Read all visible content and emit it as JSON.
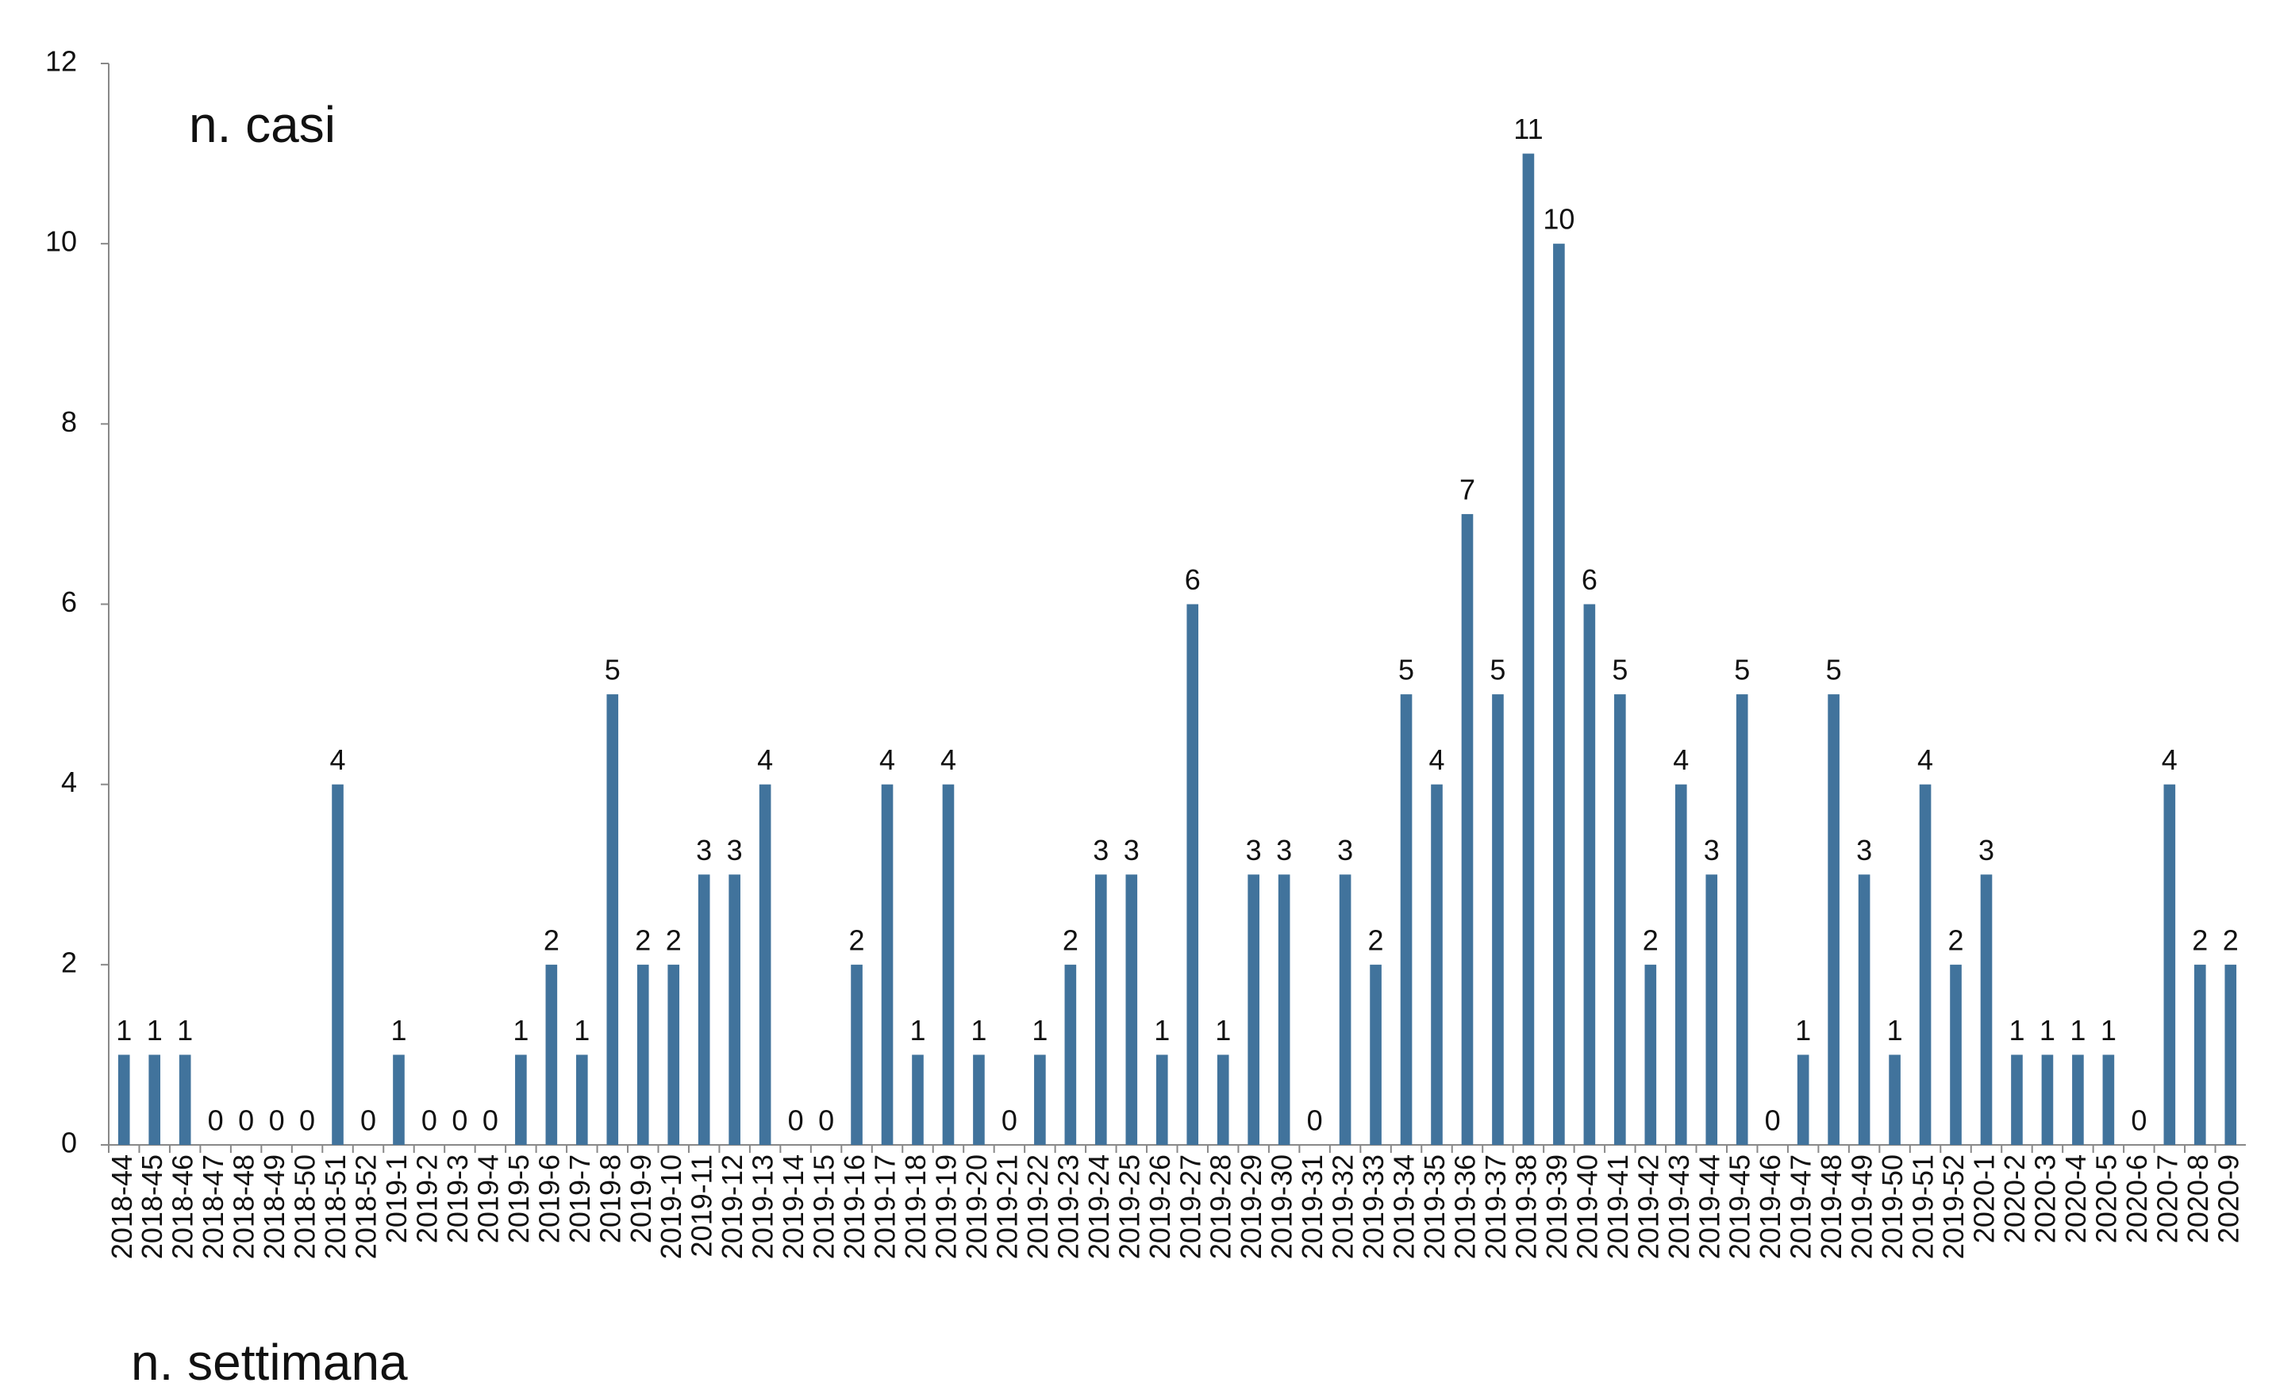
{
  "chart_data": {
    "type": "bar",
    "y_label": "n. casi",
    "x_label": "n. settimana",
    "categories": [
      "2018-44",
      "2018-45",
      "2018-46",
      "2018-47",
      "2018-48",
      "2018-49",
      "2018-50",
      "2018-51",
      "2018-52",
      "2019-1",
      "2019-2",
      "2019-3",
      "2019-4",
      "2019-5",
      "2019-6",
      "2019-7",
      "2019-8",
      "2019-9",
      "2019-10",
      "2019-11",
      "2019-12",
      "2019-13",
      "2019-14",
      "2019-15",
      "2019-16",
      "2019-17",
      "2019-18",
      "2019-19",
      "2019-20",
      "2019-21",
      "2019-22",
      "2019-23",
      "2019-24",
      "2019-25",
      "2019-26",
      "2019-27",
      "2019-28",
      "2019-29",
      "2019-30",
      "2019-31",
      "2019-32",
      "2019-33",
      "2019-34",
      "2019-35",
      "2019-36",
      "2019-37",
      "2019-38",
      "2019-39",
      "2019-40",
      "2019-41",
      "2019-42",
      "2019-43",
      "2019-44",
      "2019-45",
      "2019-46",
      "2019-47",
      "2019-48",
      "2019-49",
      "2019-50",
      "2019-51",
      "2019-52",
      "2020-1",
      "2020-2",
      "2020-3",
      "2020-4",
      "2020-5",
      "2020-6",
      "2020-7",
      "2020-8",
      "2020-9"
    ],
    "values": [
      1,
      1,
      1,
      0,
      0,
      0,
      0,
      4,
      0,
      1,
      0,
      0,
      0,
      1,
      2,
      1,
      5,
      2,
      2,
      3,
      3,
      4,
      0,
      0,
      2,
      4,
      1,
      4,
      1,
      0,
      1,
      2,
      3,
      3,
      1,
      6,
      1,
      3,
      3,
      0,
      3,
      2,
      5,
      4,
      7,
      5,
      11,
      10,
      6,
      5,
      2,
      4,
      3,
      5,
      0,
      1,
      5,
      3,
      1,
      4,
      2,
      3,
      1,
      1,
      1,
      1,
      0,
      4,
      2,
      2
    ],
    "color": "#41739c",
    "ylim": [
      0,
      12
    ],
    "yticks": [
      0,
      2,
      4,
      6,
      8,
      10,
      12
    ],
    "grid": false
  }
}
